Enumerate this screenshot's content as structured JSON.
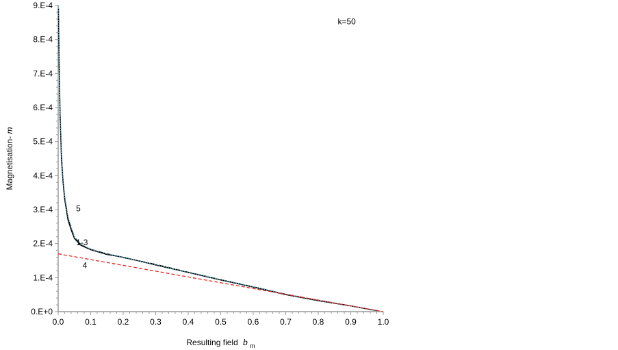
{
  "chart_data": {
    "type": "line",
    "xlabel": "Resulting field",
    "xlabel_symbol": "b",
    "xlabel_subscript": "m",
    "ylabel": "Magnetisation-",
    "ylabel_symbol": "m",
    "xlim": [
      0.0,
      1.0
    ],
    "ylim": [
      0.0,
      0.0009
    ],
    "x_ticks": [
      0.0,
      0.1,
      0.2,
      0.3,
      0.4,
      0.5,
      0.6,
      0.7,
      0.8,
      0.9,
      1.0
    ],
    "x_tick_labels": [
      "0.0",
      "0.1",
      "0.2",
      "0.3",
      "0.4",
      "0.5",
      "0.6",
      "0.7",
      "0.8",
      "0.9",
      "1.0"
    ],
    "y_ticks": [
      0.0,
      0.0001,
      0.0002,
      0.0003,
      0.0004,
      0.0005,
      0.0006,
      0.0007,
      0.0008,
      0.0009
    ],
    "y_tick_labels": [
      "0.E+0",
      "1.E-4",
      "2.E-4",
      "3.E-4",
      "4.E-4",
      "5.E-4",
      "6.E-4",
      "7.E-4",
      "8.E-4",
      "9.E-4"
    ],
    "grid": false,
    "annotations": [
      {
        "text": "k=50",
        "x": 0.86,
        "y": 0.000845
      },
      {
        "text": "5",
        "x": 0.055,
        "y": 0.000295
      },
      {
        "text": "1-3",
        "x": 0.055,
        "y": 0.000195
      },
      {
        "text": "4",
        "x": 0.075,
        "y": 0.000128
      }
    ],
    "series": [
      {
        "label_in_plot": "1-3",
        "color": "#000000",
        "style": "solid",
        "x": [
          0.001,
          0.003,
          0.006,
          0.01,
          0.015,
          0.02,
          0.03,
          0.04,
          0.05,
          0.07,
          0.1,
          0.15,
          0.2,
          0.3,
          0.4,
          0.5,
          0.6,
          0.7,
          0.8,
          0.9,
          0.95,
          0.98
        ],
        "y": [
          0.00088,
          0.00072,
          0.00057,
          0.00045,
          0.00038,
          0.00033,
          0.00027,
          0.00024,
          0.000215,
          0.000195,
          0.000182,
          0.000168,
          0.00016,
          0.000137,
          0.000115,
          9.3e-05,
          7.2e-05,
          5e-05,
          3.2e-05,
          1.7e-05,
          8e-06,
          3e-06
        ]
      },
      {
        "label_in_plot": "",
        "color": "#000000",
        "style": "dashdot",
        "x": [
          0.001,
          0.003,
          0.006,
          0.01,
          0.015,
          0.02,
          0.03,
          0.04,
          0.05,
          0.07,
          0.1,
          0.15,
          0.2,
          0.3,
          0.4,
          0.5,
          0.6,
          0.7,
          0.8,
          0.9,
          0.95,
          0.98
        ],
        "y": [
          0.00089,
          0.00073,
          0.00058,
          0.00046,
          0.000385,
          0.000335,
          0.000275,
          0.000245,
          0.000218,
          0.000197,
          0.000183,
          0.00017,
          0.000159,
          0.000139,
          0.000116,
          9.4e-05,
          7.3e-05,
          5.1e-05,
          3.3e-05,
          1.7e-05,
          8e-06,
          3e-06
        ]
      },
      {
        "label_in_plot": "5",
        "color": "#4aa3b8",
        "style": "dotted",
        "x": [
          0.001,
          0.003,
          0.006,
          0.01,
          0.015,
          0.02,
          0.03,
          0.04,
          0.05,
          0.07,
          0.1,
          0.15,
          0.2,
          0.3,
          0.4,
          0.5,
          0.6,
          0.7,
          0.8,
          0.9,
          0.95,
          0.98
        ],
        "y": [
          0.0009,
          0.00074,
          0.00059,
          0.00047,
          0.00039,
          0.00034,
          0.00028,
          0.00025,
          0.00022,
          0.000198,
          0.000184,
          0.00017,
          0.00016,
          0.000138,
          0.000116,
          9.4e-05,
          7.3e-05,
          5.1e-05,
          3.3e-05,
          1.7e-05,
          8e-06,
          3e-06
        ]
      },
      {
        "label_in_plot": "4",
        "color": "#e8231e",
        "style": "dashed",
        "x": [
          0.0,
          0.1,
          0.2,
          0.3,
          0.4,
          0.5,
          0.6,
          0.7,
          0.8,
          0.9,
          1.0
        ],
        "y": [
          0.00017,
          0.000153,
          0.000136,
          0.000119,
          0.000102,
          8.5e-05,
          6.8e-05,
          5.1e-05,
          3.4e-05,
          1.7e-05,
          0.0
        ]
      }
    ]
  }
}
